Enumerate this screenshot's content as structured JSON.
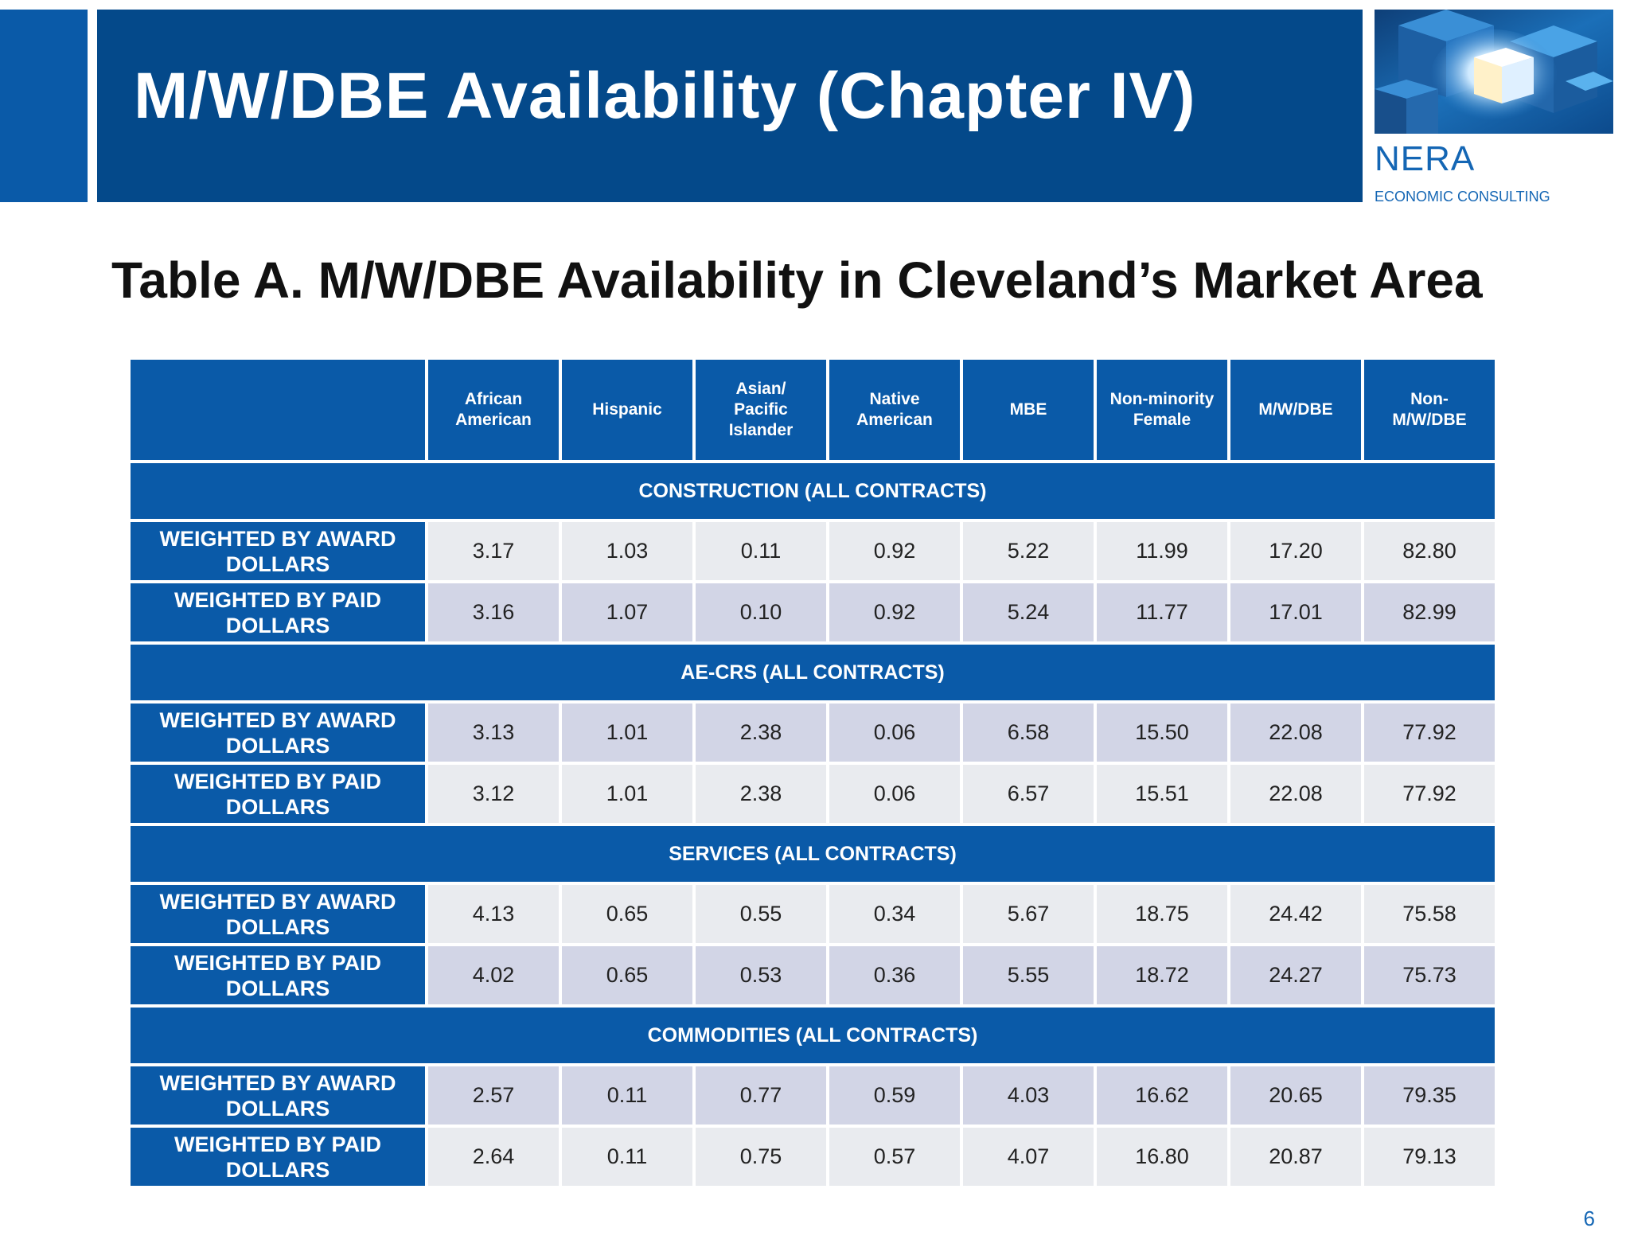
{
  "header": {
    "title": "M/W/DBE Availability (Chapter IV)",
    "logo_name": "NERA",
    "logo_subtitle": "ECONOMIC CONSULTING",
    "accent_color": "#04498a"
  },
  "table": {
    "title": "Table A. M/W/DBE Availability in Cleveland’s Market Area",
    "columns": [
      [
        "African",
        "American"
      ],
      [
        "Hispanic"
      ],
      [
        "Asian/",
        "Pacific",
        "Islander"
      ],
      [
        "Native",
        "American"
      ],
      [
        "MBE"
      ],
      [
        "Non-minority",
        "Female"
      ],
      [
        "M/W/DBE"
      ],
      [
        "Non-",
        "M/W/DBE"
      ]
    ],
    "sections": [
      {
        "title": "CONSTRUCTION (ALL CONTRACTS)",
        "rows": [
          {
            "label": [
              "WEIGHTED BY AWARD",
              "DOLLARS"
            ],
            "shade": "light",
            "values": [
              "3.17",
              "1.03",
              "0.11",
              "0.92",
              "5.22",
              "11.99",
              "17.20",
              "82.80"
            ]
          },
          {
            "label": [
              "WEIGHTED BY PAID",
              "DOLLARS"
            ],
            "shade": "dark",
            "values": [
              "3.16",
              "1.07",
              "0.10",
              "0.92",
              "5.24",
              "11.77",
              "17.01",
              "82.99"
            ]
          }
        ]
      },
      {
        "title": "AE-CRS (ALL CONTRACTS)",
        "rows": [
          {
            "label": [
              "WEIGHTED BY AWARD",
              "DOLLARS"
            ],
            "shade": "dark",
            "values": [
              "3.13",
              "1.01",
              "2.38",
              "0.06",
              "6.58",
              "15.50",
              "22.08",
              "77.92"
            ]
          },
          {
            "label": [
              "WEIGHTED BY PAID",
              "DOLLARS"
            ],
            "shade": "light",
            "values": [
              "3.12",
              "1.01",
              "2.38",
              "0.06",
              "6.57",
              "15.51",
              "22.08",
              "77.92"
            ]
          }
        ]
      },
      {
        "title": "SERVICES (ALL CONTRACTS)",
        "rows": [
          {
            "label": [
              "WEIGHTED BY AWARD",
              "DOLLARS"
            ],
            "shade": "light",
            "values": [
              "4.13",
              "0.65",
              "0.55",
              "0.34",
              "5.67",
              "18.75",
              "24.42",
              "75.58"
            ]
          },
          {
            "label": [
              "WEIGHTED BY PAID",
              "DOLLARS"
            ],
            "shade": "dark",
            "values": [
              "4.02",
              "0.65",
              "0.53",
              "0.36",
              "5.55",
              "18.72",
              "24.27",
              "75.73"
            ]
          }
        ]
      },
      {
        "title": "COMMODITIES (ALL CONTRACTS)",
        "rows": [
          {
            "label": [
              "WEIGHTED BY AWARD",
              "DOLLARS"
            ],
            "shade": "dark",
            "values": [
              "2.57",
              "0.11",
              "0.77",
              "0.59",
              "4.03",
              "16.62",
              "20.65",
              "79.35"
            ]
          },
          {
            "label": [
              "WEIGHTED BY PAID",
              "DOLLARS"
            ],
            "shade": "light",
            "values": [
              "2.64",
              "0.11",
              "0.75",
              "0.57",
              "4.07",
              "16.80",
              "20.87",
              "79.13"
            ]
          }
        ]
      }
    ]
  },
  "footer": {
    "page_number": "6"
  }
}
